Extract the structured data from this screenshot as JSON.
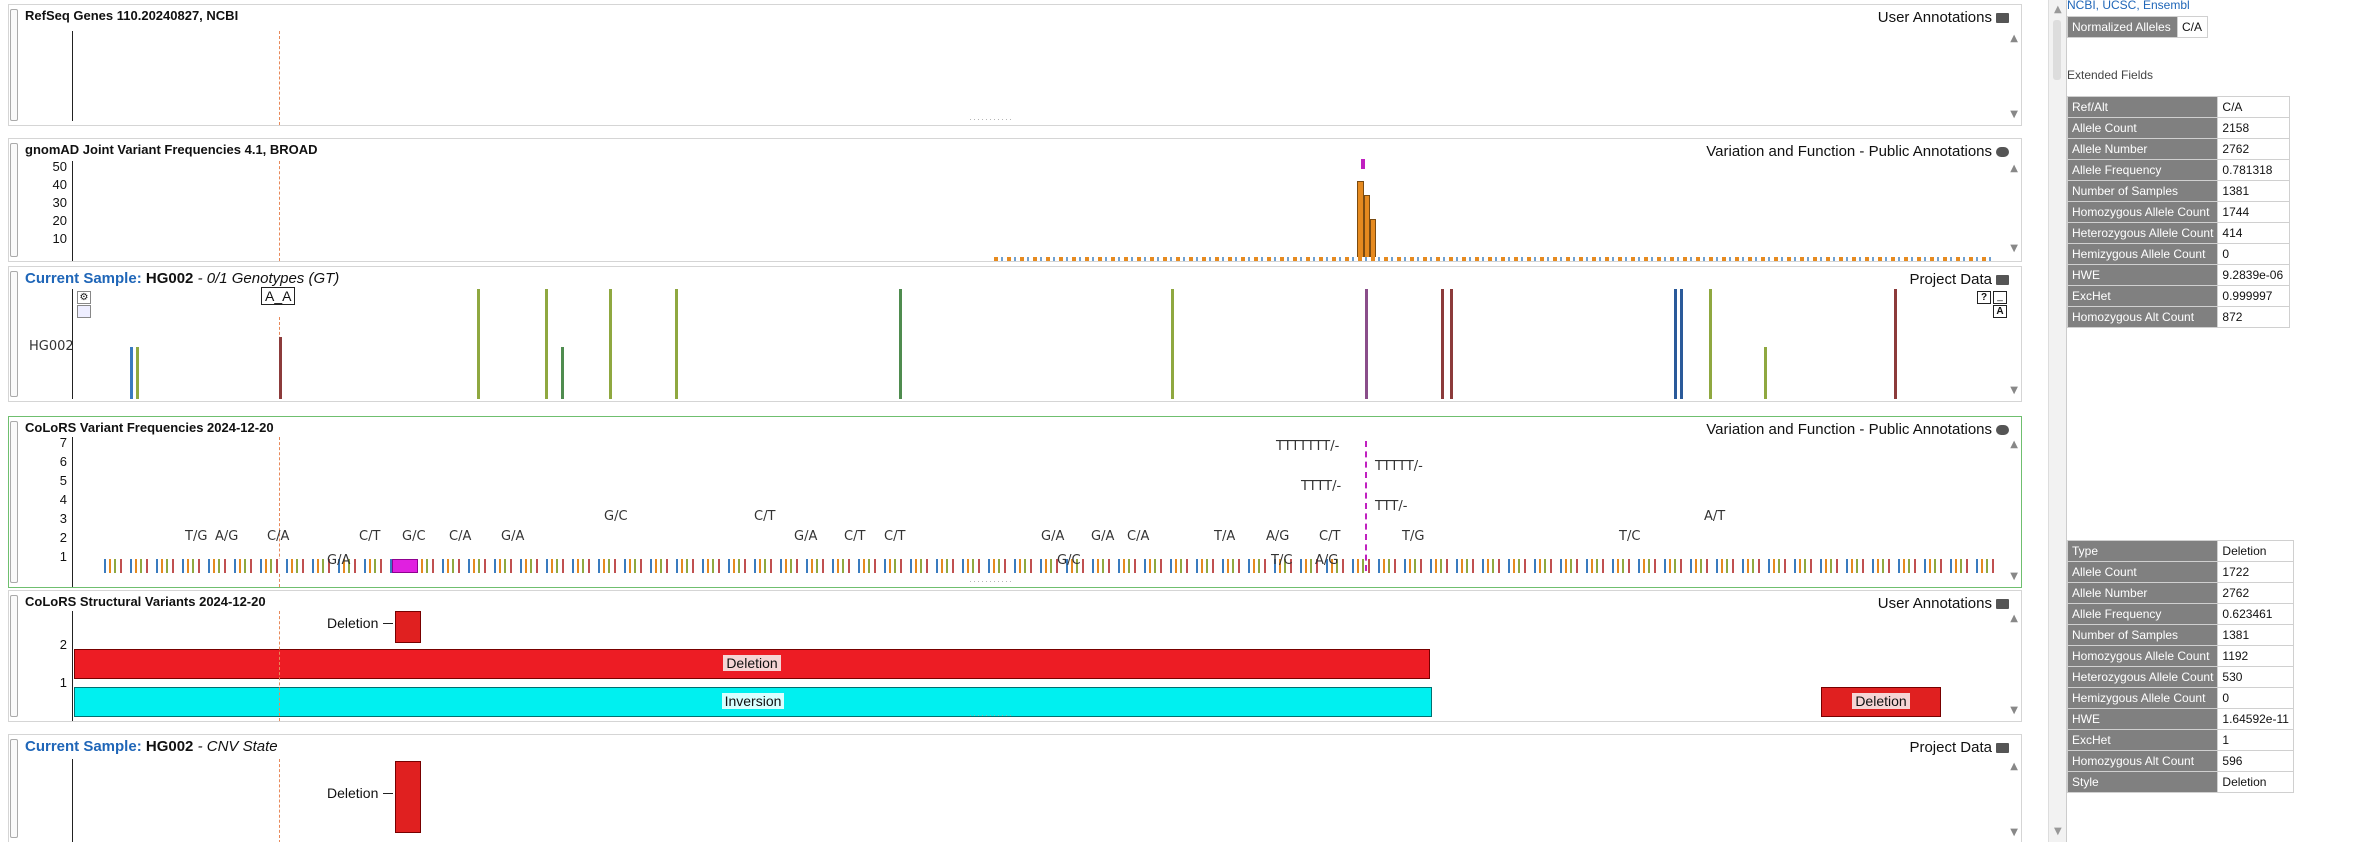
{
  "tracks": {
    "refseq": {
      "title": "RefSeq Genes 110.20240827, NCBI",
      "source": "User Annotations"
    },
    "gnomad": {
      "title": "gnomAD Joint Variant Frequencies 4.1, BROAD",
      "source": "Variation and Function - Public Annotations",
      "ticks": [
        "50",
        "40",
        "30",
        "20",
        "10"
      ]
    },
    "sample": {
      "title_prefix": "Current Sample:",
      "sample_name": "HG002",
      "title_suffix": "- 0/1 Genotypes (GT)",
      "source": "Project Data",
      "row_label": "HG002",
      "tooltip_label": "A_A"
    },
    "colors": {
      "title": "CoLoRS Variant Frequencies 2024-12-20",
      "source": "Variation and Function - Public Annotations",
      "ticks": [
        "7",
        "6",
        "5",
        "4",
        "3",
        "2",
        "1"
      ],
      "allele_labels": [
        "T/G",
        "A/G",
        "C/A",
        "C/T",
        "G/C",
        "C/A",
        "G/A",
        "G/C",
        "C/T",
        "G/A",
        "C/T",
        "C/T",
        "G/A",
        "G/A",
        "C/A",
        "T/A",
        "A/G",
        "C/T",
        "T/G",
        "T/C",
        "A/T",
        "G/A",
        "G/C",
        "T/C",
        "A/G",
        "TTTTTTT/-",
        "TTTTT/-",
        "TTTT/-",
        "TTT/-"
      ]
    },
    "sv": {
      "title": "CoLoRS Structural Variants 2024-12-20",
      "source": "User Annotations",
      "ticks": [
        "2",
        "1"
      ],
      "labels": {
        "deletion_small": "Deletion",
        "deletion_big": "Deletion",
        "inversion": "Inversion",
        "deletion_right": "Deletion"
      }
    },
    "cnv": {
      "title_prefix": "Current Sample:",
      "sample_name": "HG002",
      "title_suffix": "- CNV State",
      "source": "Project Data",
      "label": "Deletion"
    }
  },
  "right_panel": {
    "links": "NCBI, UCSC, Ensembl",
    "normalized": {
      "key": "Normalized Alleles",
      "value": "C/A"
    },
    "extended_header": "Extended Fields",
    "fields1": [
      {
        "k": "Ref/Alt",
        "v": "C/A"
      },
      {
        "k": "Allele Count",
        "v": "2158"
      },
      {
        "k": "Allele Number",
        "v": "2762"
      },
      {
        "k": "Allele Frequency",
        "v": "0.781318"
      },
      {
        "k": "Number of Samples",
        "v": "1381"
      },
      {
        "k": "Homozygous Allele Count",
        "v": "1744"
      },
      {
        "k": "Heterozygous Allele Count",
        "v": "414"
      },
      {
        "k": "Hemizygous Allele Count",
        "v": "0"
      },
      {
        "k": "HWE",
        "v": "9.2839e-06"
      },
      {
        "k": "ExcHet",
        "v": "0.999997"
      },
      {
        "k": "Homozygous Alt Count",
        "v": "872"
      }
    ],
    "fields2": [
      {
        "k": "Type",
        "v": "Deletion"
      },
      {
        "k": "Allele Count",
        "v": "1722"
      },
      {
        "k": "Allele Number",
        "v": "2762"
      },
      {
        "k": "Allele Frequency",
        "v": "0.623461"
      },
      {
        "k": "Number of Samples",
        "v": "1381"
      },
      {
        "k": "Homozygous Allele Count",
        "v": "1192"
      },
      {
        "k": "Heterozygous Allele Count",
        "v": "530"
      },
      {
        "k": "Hemizygous Allele Count",
        "v": "0"
      },
      {
        "k": "HWE",
        "v": "1.64592e-11"
      },
      {
        "k": "ExcHet",
        "v": "1"
      },
      {
        "k": "Homozygous Alt Count",
        "v": "596"
      },
      {
        "k": "Style",
        "v": "Deletion"
      }
    ]
  }
}
